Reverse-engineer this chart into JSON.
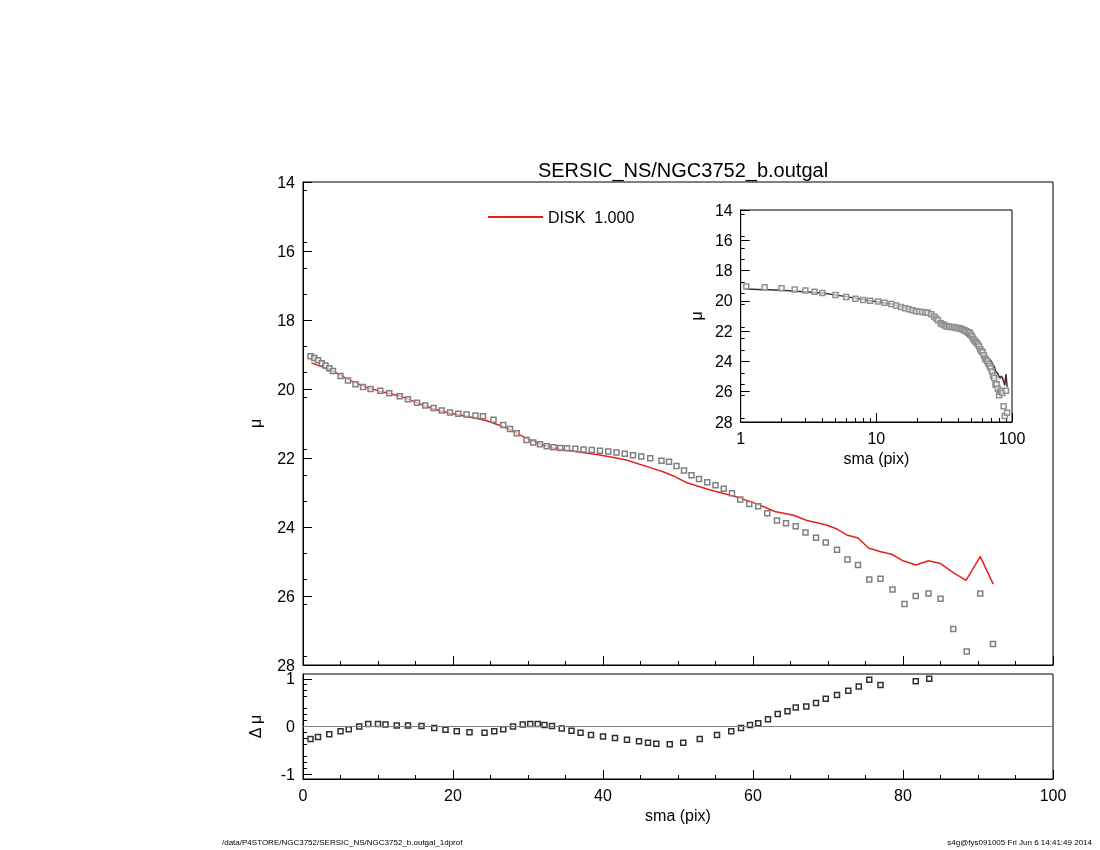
{
  "chart_data": [
    {
      "type": "scatter",
      "title": "SERSIC_NS/NGC3752_b.outgal",
      "ylabel": "μ",
      "xlim": [
        0,
        100
      ],
      "xticks": [
        0,
        20,
        40,
        60,
        80,
        100
      ],
      "ylim": [
        28,
        14
      ],
      "yticks": [
        14,
        16,
        18,
        20,
        22,
        24,
        26,
        28
      ],
      "tick_labels": "y",
      "legend": "top",
      "marker": "square",
      "annotations": [
        "/data/P4STORE/NGC3752/SERSIC_NS/NGC3752_b.outgal_1dprof",
        "s4g@fys091005  Fri Jun  6 14:41:49 2014"
      ],
      "series": [
        {
          "color": "#808080",
          "x": [
            1.0,
            1.5,
            2,
            2.5,
            3,
            3.5,
            4,
            5,
            6,
            7,
            8,
            9,
            10.3,
            11.5,
            12.9,
            14,
            15.2,
            16.3,
            17.4,
            18.5,
            19.6,
            20.7,
            21.8,
            23,
            24,
            25.4,
            26.7,
            27.6,
            28.5,
            29.8,
            30.7,
            31.6,
            32.5,
            33.4,
            34.3,
            35.2,
            36.3,
            37.4,
            38.5,
            39.6,
            40.7,
            41.8,
            42.9,
            44.0,
            45.1,
            46.3,
            47.8,
            48.8,
            49.8,
            50.8,
            51.8,
            52.8,
            53.9,
            55.0,
            56.1,
            57.2,
            58.3,
            59.5,
            60.7,
            61.9,
            63.2,
            64.4,
            65.7,
            67.0,
            68.4,
            69.7,
            71.2,
            72.6,
            74.0,
            75.5,
            77.0,
            78.6,
            80.2,
            81.7,
            83.4,
            85.0,
            86.7,
            88.5,
            90.3,
            92.0
          ],
          "values": [
            19.05,
            19.1,
            19.17,
            19.25,
            19.32,
            19.4,
            19.48,
            19.62,
            19.75,
            19.86,
            19.94,
            20.0,
            20.05,
            20.12,
            20.21,
            20.3,
            20.4,
            20.48,
            20.55,
            20.62,
            20.68,
            20.72,
            20.74,
            20.77,
            20.79,
            20.89,
            21.04,
            21.16,
            21.28,
            21.48,
            21.55,
            21.6,
            21.66,
            21.69,
            21.71,
            21.72,
            21.73,
            21.75,
            21.77,
            21.79,
            21.81,
            21.84,
            21.88,
            21.92,
            21.96,
            22.01,
            22.08,
            22.11,
            22.23,
            22.36,
            22.5,
            22.61,
            22.7,
            22.79,
            22.89,
            23.02,
            23.2,
            23.33,
            23.4,
            23.6,
            23.81,
            23.89,
            23.98,
            24.16,
            24.31,
            24.45,
            24.66,
            24.94,
            25.1,
            25.52,
            25.5,
            25.81,
            26.23,
            26.0,
            25.93,
            26.08,
            26.96,
            27.61,
            25.93,
            27.39
          ]
        },
        {
          "type": "line",
          "name": "DISK  1.000",
          "color": "#e8201c",
          "marker": "none",
          "x": [
            1.2,
            4,
            6,
            8.5,
            10.5,
            12.9,
            15,
            17.4,
            19.6,
            21.8,
            24.5,
            27.2,
            29.8,
            31.6,
            33.4,
            36.5,
            39.6,
            43,
            46.3,
            48,
            49.4,
            51.2,
            54.3,
            57.4,
            60.5,
            62.9,
            65.4,
            67.2,
            69.8,
            71.2,
            72.5,
            74.0,
            75.4,
            76.9,
            78.5,
            80.0,
            81.7,
            83.4,
            85.0,
            86.7,
            88.4,
            90.3,
            92.0
          ],
          "values": [
            19.25,
            19.48,
            19.72,
            19.96,
            20.08,
            20.2,
            20.38,
            20.58,
            20.7,
            20.79,
            20.92,
            21.13,
            21.43,
            21.6,
            21.72,
            21.82,
            21.91,
            22.05,
            22.28,
            22.4,
            22.52,
            22.72,
            22.93,
            23.1,
            23.33,
            23.55,
            23.66,
            23.81,
            23.94,
            24.06,
            24.23,
            24.32,
            24.61,
            24.71,
            24.79,
            24.98,
            25.1,
            24.98,
            25.06,
            25.32,
            25.55,
            24.86,
            25.64
          ]
        }
      ]
    },
    {
      "type": "scatter",
      "xlabel": "sma (pix)",
      "ylabel": "Δ μ",
      "xlim": [
        0,
        100
      ],
      "xticks": [
        0,
        20,
        40,
        60,
        80,
        100
      ],
      "ylim": [
        -1.1,
        1.1
      ],
      "yticks": [
        -1,
        0,
        1
      ],
      "marker": "square",
      "ref_lines": [
        {
          "axis": "y",
          "value": 0,
          "color": "#808080"
        }
      ],
      "series": [
        {
          "color": "#303030",
          "x": [
            1.0,
            2,
            3.5,
            5,
            6.1,
            7.5,
            8.7,
            10,
            11,
            12.5,
            14,
            15.8,
            17.5,
            19,
            20.5,
            22.2,
            24.2,
            25.5,
            26.7,
            28,
            29.3,
            30.3,
            31.3,
            32.2,
            33.2,
            34.5,
            35.8,
            37,
            38.4,
            40,
            41.6,
            43.2,
            44.8,
            46,
            47.1,
            48.9,
            50.7,
            52.9,
            55.2,
            57.1,
            58.4,
            59.6,
            60.7,
            62,
            63.3,
            64.6,
            65.7,
            67.1,
            68.4,
            69.7,
            71.2,
            72.7,
            74.1,
            75.5,
            77.0,
            81.7,
            83.5
          ],
          "values": [
            -0.26,
            -0.22,
            -0.16,
            -0.1,
            -0.06,
            0.0,
            0.05,
            0.05,
            0.04,
            0.02,
            0.02,
            0.01,
            -0.03,
            -0.07,
            -0.1,
            -0.12,
            -0.13,
            -0.1,
            -0.06,
            0.0,
            0.04,
            0.05,
            0.05,
            0.03,
            0.01,
            -0.04,
            -0.09,
            -0.13,
            -0.18,
            -0.21,
            -0.24,
            -0.28,
            -0.31,
            -0.34,
            -0.36,
            -0.37,
            -0.34,
            -0.26,
            -0.18,
            -0.1,
            -0.03,
            0.03,
            0.07,
            0.15,
            0.26,
            0.32,
            0.4,
            0.42,
            0.49,
            0.58,
            0.66,
            0.75,
            0.84,
            0.98,
            0.87,
            0.95,
            1.0
          ]
        }
      ]
    },
    {
      "type": "scatter",
      "xlabel": "sma (pix)",
      "ylabel": "μ",
      "log": "x",
      "xlim": [
        1,
        100
      ],
      "xticks": [
        1,
        10,
        100
      ],
      "ylim": [
        28,
        14
      ],
      "yticks": [
        14,
        16,
        18,
        20,
        22,
        24,
        26,
        28
      ],
      "marker": "square",
      "series": [
        {
          "color": "#909090",
          "x": [
            1.1,
            1.5,
            2,
            2.5,
            3,
            3.5,
            4,
            5,
            6,
            7,
            8,
            9,
            10.3,
            11.5,
            12.9,
            14,
            15.2,
            16.3,
            17.4,
            18.5,
            19.6,
            20.7,
            21.8,
            23,
            24,
            25.4,
            26.7,
            27.6,
            28.5,
            29.8,
            30.7,
            31.6,
            32.5,
            33.4,
            34.3,
            35.2,
            36.3,
            37.4,
            38.5,
            39.6,
            40.7,
            41.8,
            42.9,
            44.0,
            45.1,
            46.3,
            47.8,
            48.8,
            49.8,
            50.8,
            51.8,
            52.8,
            53.9,
            55.0,
            56.1,
            57.2,
            58.3,
            59.5,
            60.7,
            61.9,
            63.2,
            64.4,
            65.7,
            67.0,
            68.4,
            69.7,
            71.2,
            72.6,
            74.0,
            75.5,
            77.0,
            78.6,
            80.2,
            81.7,
            83.4,
            85.0,
            86.7,
            88.5,
            90.3,
            92.0
          ],
          "values": [
            19.05,
            19.1,
            19.17,
            19.25,
            19.32,
            19.4,
            19.48,
            19.62,
            19.75,
            19.86,
            19.94,
            20.0,
            20.05,
            20.12,
            20.21,
            20.3,
            20.4,
            20.48,
            20.55,
            20.62,
            20.68,
            20.72,
            20.74,
            20.77,
            20.79,
            20.89,
            21.04,
            21.16,
            21.28,
            21.48,
            21.55,
            21.6,
            21.66,
            21.69,
            21.71,
            21.72,
            21.73,
            21.75,
            21.77,
            21.79,
            21.81,
            21.84,
            21.88,
            21.92,
            21.96,
            22.01,
            22.08,
            22.11,
            22.23,
            22.36,
            22.5,
            22.61,
            22.7,
            22.79,
            22.89,
            23.02,
            23.2,
            23.33,
            23.4,
            23.6,
            23.81,
            23.89,
            23.98,
            24.16,
            24.31,
            24.45,
            24.66,
            24.94,
            25.1,
            25.52,
            25.5,
            25.81,
            26.23,
            26.0,
            25.93,
            26.08,
            26.96,
            27.61,
            25.93,
            27.39
          ]
        },
        {
          "type": "line",
          "color": "#4a2828",
          "marker": "none",
          "x": [
            1.1,
            2,
            4,
            6,
            8.5,
            10.5,
            12.9,
            15,
            17.4,
            19.6,
            21.8,
            24.5,
            27.2,
            29.8,
            31.6,
            33.4,
            36.5,
            39.6,
            43,
            46.3,
            48,
            49.4,
            51.2,
            54.3,
            57.4,
            60.5,
            62.9,
            65.4,
            67.2,
            69.8,
            71.2,
            72.5,
            74.0,
            75.4,
            76.9,
            78.5,
            80.0,
            81.7,
            83.4,
            85.0,
            86.7,
            88.4,
            90.3,
            92.0
          ],
          "values": [
            19.22,
            19.3,
            19.48,
            19.72,
            19.96,
            20.08,
            20.2,
            20.38,
            20.58,
            20.7,
            20.79,
            20.92,
            21.13,
            21.43,
            21.6,
            21.72,
            21.82,
            21.91,
            22.05,
            22.28,
            22.4,
            22.52,
            22.72,
            22.93,
            23.1,
            23.33,
            23.55,
            23.66,
            23.81,
            23.94,
            24.06,
            24.23,
            24.32,
            24.61,
            24.71,
            24.79,
            24.98,
            25.1,
            24.98,
            25.06,
            25.32,
            25.55,
            24.86,
            25.64
          ]
        }
      ]
    }
  ]
}
